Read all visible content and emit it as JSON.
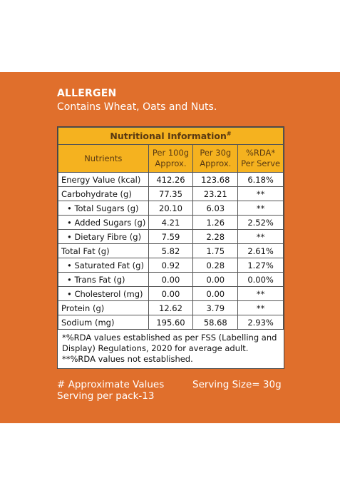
{
  "allergen": {
    "title": "ALLERGEN",
    "text": "Contains Wheat, Oats and Nuts."
  },
  "table": {
    "title": "Nutritional Information",
    "title_mark": "#",
    "headers": {
      "nutrients": "Nutrients",
      "per100_line1": "Per 100g",
      "per100_line2": "Approx.",
      "per30_line1": "Per 30g",
      "per30_line2": "Approx.",
      "rda_line1": "%RDA*",
      "rda_line2": "Per Serve"
    },
    "rows": [
      {
        "name": "Energy Value (kcal)",
        "per100": "412.26",
        "per30": "123.68",
        "rda": "6.18%"
      },
      {
        "name": "Carbohydrate (g)",
        "per100": "77.35",
        "per30": "23.21",
        "rda": "**"
      },
      {
        "name": "• Total Sugars (g)",
        "per100": "20.10",
        "per30": "6.03",
        "rda": "**"
      },
      {
        "name": "• Added Sugars (g)",
        "per100": "4.21",
        "per30": "1.26",
        "rda": "2.52%"
      },
      {
        "name": "• Dietary Fibre (g)",
        "per100": "7.59",
        "per30": "2.28",
        "rda": "**"
      },
      {
        "name": "Total Fat (g)",
        "per100": "5.82",
        "per30": "1.75",
        "rda": "2.61%"
      },
      {
        "name": "• Saturated Fat (g)",
        "per100": "0.92",
        "per30": "0.28",
        "rda": "1.27%"
      },
      {
        "name": "• Trans Fat (g)",
        "per100": "0.00",
        "per30": "0.00",
        "rda": "0.00%"
      },
      {
        "name": "• Cholesterol (mg)",
        "per100": "0.00",
        "per30": "0.00",
        "rda": "**"
      },
      {
        "name": "Protein (g)",
        "per100": "12.62",
        "per30": "3.79",
        "rda": "**"
      },
      {
        "name": "Sodium (mg)",
        "per100": "195.60",
        "per30": "58.68",
        "rda": "2.93%"
      }
    ],
    "footnote_line1": "*%RDA values established as per FSS (Labelling and",
    "footnote_line2": "Display) Regulations, 2020 for average adult.",
    "footnote_line3": "**%RDA values not established."
  },
  "bottom": {
    "approx": "# Approximate Values",
    "serving_per_pack": "Serving per pack-13",
    "serving_size": "Serving Size= 30g"
  },
  "colors": {
    "panel": "#e06f2c",
    "header": "#f5b21f"
  }
}
